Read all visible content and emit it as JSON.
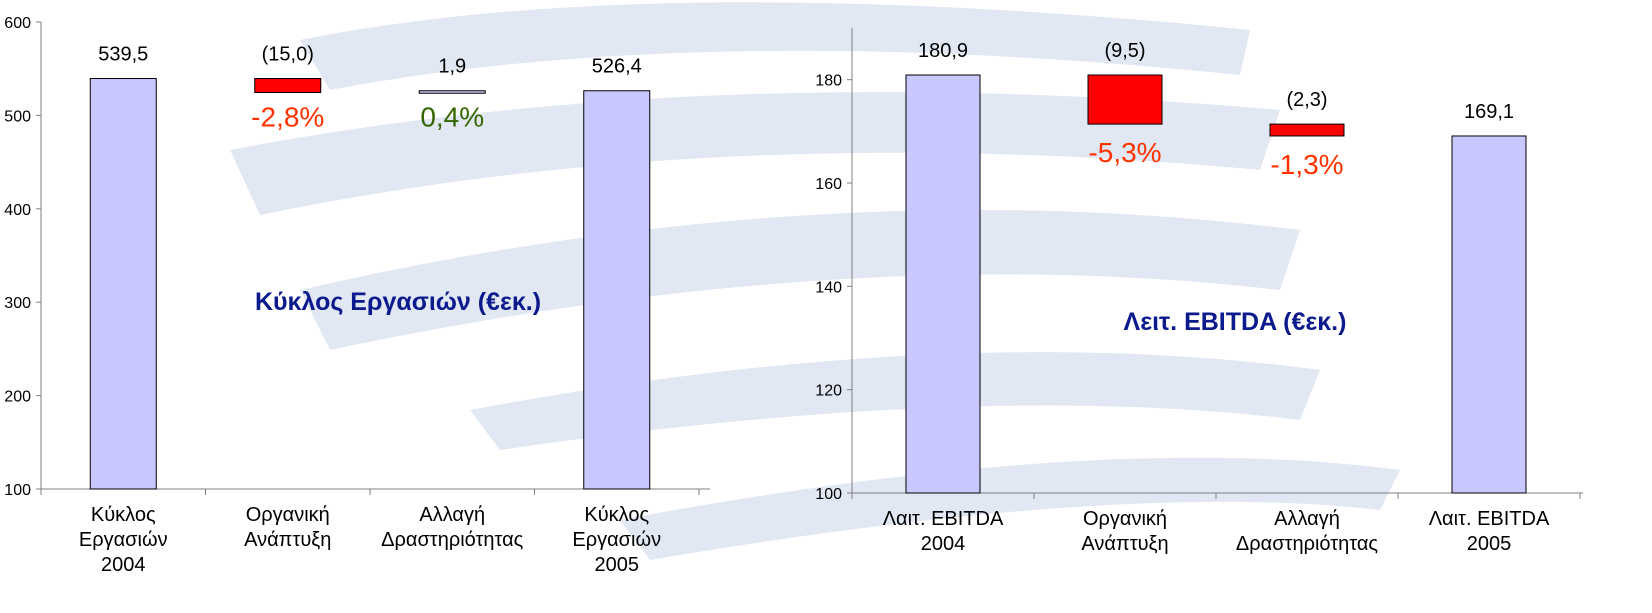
{
  "colors": {
    "total_bar": "#c8c8ff",
    "decrease_bar": "#ff0000",
    "increase_bar": "#c8c8ff",
    "pct_negative": "#ff3300",
    "pct_positive": "#336600",
    "title": "#0b1a8c",
    "watermark": "#c9d6ea"
  },
  "chart_data": [
    {
      "type": "bar",
      "subtype": "waterfall",
      "title": "Κύκλος Εργασιών (€εκ.)",
      "ylim": [
        100,
        600
      ],
      "yticks": [
        "100",
        "200",
        "300",
        "400",
        "500",
        "600"
      ],
      "grid": false,
      "legend": "none",
      "items": [
        {
          "category": [
            "Κύκλος",
            "Εργασιών",
            "2004"
          ],
          "kind": "total",
          "value": 539.5,
          "label": "539,5"
        },
        {
          "category": [
            "Οργανική",
            "Ανάπτυξη"
          ],
          "kind": "decrease",
          "value": -15.0,
          "label": "(15,0)",
          "pct": "-2,8%"
        },
        {
          "category": [
            "Αλλαγή",
            "Δραστηριότητας"
          ],
          "kind": "increase",
          "value": 1.9,
          "label": "1,9",
          "pct": "0,4%"
        },
        {
          "category": [
            "Κύκλος",
            "Εργασιών",
            "2005"
          ],
          "kind": "total",
          "value": 526.4,
          "label": "526,4"
        }
      ]
    },
    {
      "type": "bar",
      "subtype": "waterfall",
      "title": "Λειτ. EBITDA (€εκ.)",
      "ylim": [
        100,
        190
      ],
      "yticks": [
        "100",
        "120",
        "140",
        "160",
        "180"
      ],
      "grid": false,
      "legend": "none",
      "items": [
        {
          "category": [
            "Λαιτ. EBITDA",
            "2004"
          ],
          "kind": "total",
          "value": 180.9,
          "label": "180,9"
        },
        {
          "category": [
            "Οργανική",
            "Ανάπτυξη"
          ],
          "kind": "decrease",
          "value": -9.5,
          "label": "(9,5)",
          "pct": "-5,3%"
        },
        {
          "category": [
            "Αλλαγή",
            "Δραστηριότητας"
          ],
          "kind": "decrease",
          "value": -2.3,
          "label": "(2,3)",
          "pct": "-1,3%"
        },
        {
          "category": [
            "Λαιτ. EBITDA",
            "2005"
          ],
          "kind": "total",
          "value": 169.1,
          "label": "169,1"
        }
      ]
    }
  ]
}
